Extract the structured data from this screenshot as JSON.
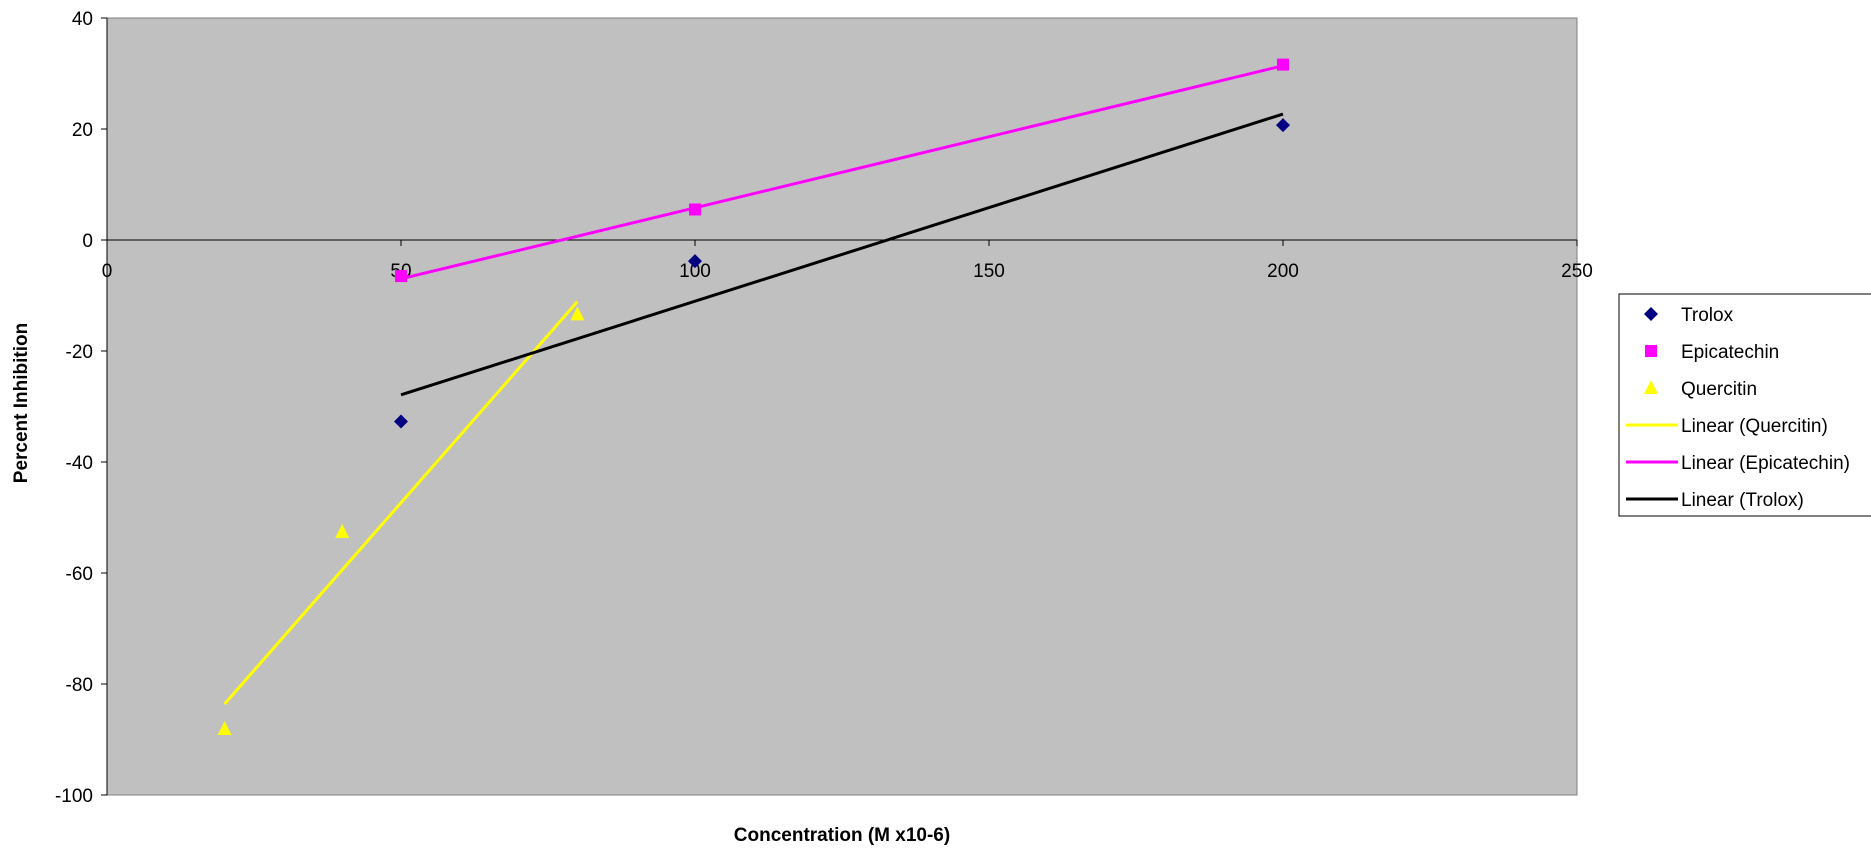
{
  "chart_data": {
    "type": "scatter",
    "title": "",
    "xlabel": "Concentration (M x10-6)",
    "ylabel": "Percent Inhibition",
    "xlim": [
      0,
      250
    ],
    "ylim": [
      -100,
      40
    ],
    "x_ticks": [
      0,
      50,
      100,
      150,
      200,
      250
    ],
    "y_ticks": [
      40,
      20,
      0,
      -20,
      -40,
      -60,
      -80,
      -100
    ],
    "grid": false,
    "plot_background": "#C0C0C0",
    "legend_position": "right",
    "series": [
      {
        "name": "Trolox",
        "marker": "diamond",
        "color": "#000080",
        "points": [
          [
            50,
            -32.7
          ],
          [
            100,
            -3.8
          ],
          [
            200,
            20.7
          ]
        ]
      },
      {
        "name": "Epicatechin",
        "marker": "square",
        "color": "#FF00FF",
        "points": [
          [
            50,
            -6.5
          ],
          [
            100,
            5.5
          ],
          [
            200,
            31.6
          ]
        ]
      },
      {
        "name": "Quercitin",
        "marker": "triangle",
        "color": "#FFFF00",
        "points": [
          [
            20,
            -88.1
          ],
          [
            40,
            -52.6
          ],
          [
            80,
            -13.4
          ]
        ]
      }
    ],
    "trendlines": [
      {
        "name": "Linear (Quercitin)",
        "color": "#FFFF00",
        "from": [
          20,
          -83.6
        ],
        "to": [
          80,
          -11.1
        ]
      },
      {
        "name": "Linear (Epicatechin)",
        "color": "#FF00FF",
        "from": [
          50,
          -7.0
        ],
        "to": [
          200,
          31.4
        ]
      },
      {
        "name": "Linear (Trolox)",
        "color": "#000000",
        "from": [
          50,
          -27.9
        ],
        "to": [
          200,
          22.7
        ]
      }
    ]
  }
}
